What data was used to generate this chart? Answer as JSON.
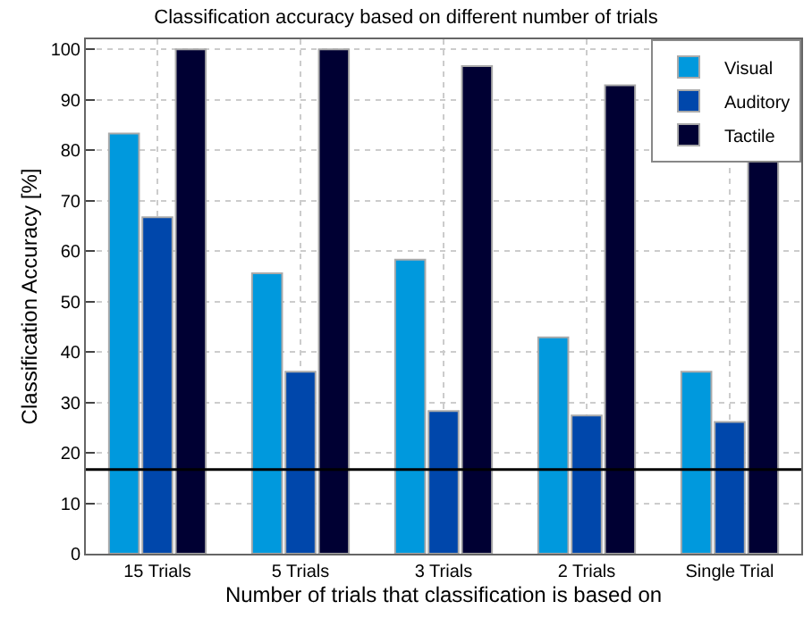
{
  "chart_data": {
    "type": "bar",
    "title": "Classification accuracy based on different number of trials",
    "xlabel": "Number of trials that classification is based on",
    "ylabel": "Classification Accuracy [%]",
    "categories": [
      "15 Trials",
      "5 Trials",
      "3 Trials",
      "2 Trials",
      "Single Trial"
    ],
    "series": [
      {
        "name": "Visual",
        "color": "#0099dd",
        "values": [
          83.3,
          55.6,
          58.3,
          42.9,
          36.1
        ]
      },
      {
        "name": "Auditory",
        "color": "#0047ab",
        "values": [
          66.7,
          36.1,
          28.3,
          27.4,
          26.1
        ]
      },
      {
        "name": "Tactile",
        "color": "#000033",
        "values": [
          100,
          100,
          96.7,
          92.9,
          78.3
        ]
      }
    ],
    "ylim": [
      0,
      102
    ],
    "yticks": [
      0,
      10,
      20,
      30,
      40,
      50,
      60,
      70,
      80,
      90,
      100
    ],
    "ref_lines": [
      {
        "axis": "y",
        "value": 16.7,
        "color": "#000000"
      }
    ],
    "grid": true,
    "legend": "top right"
  }
}
